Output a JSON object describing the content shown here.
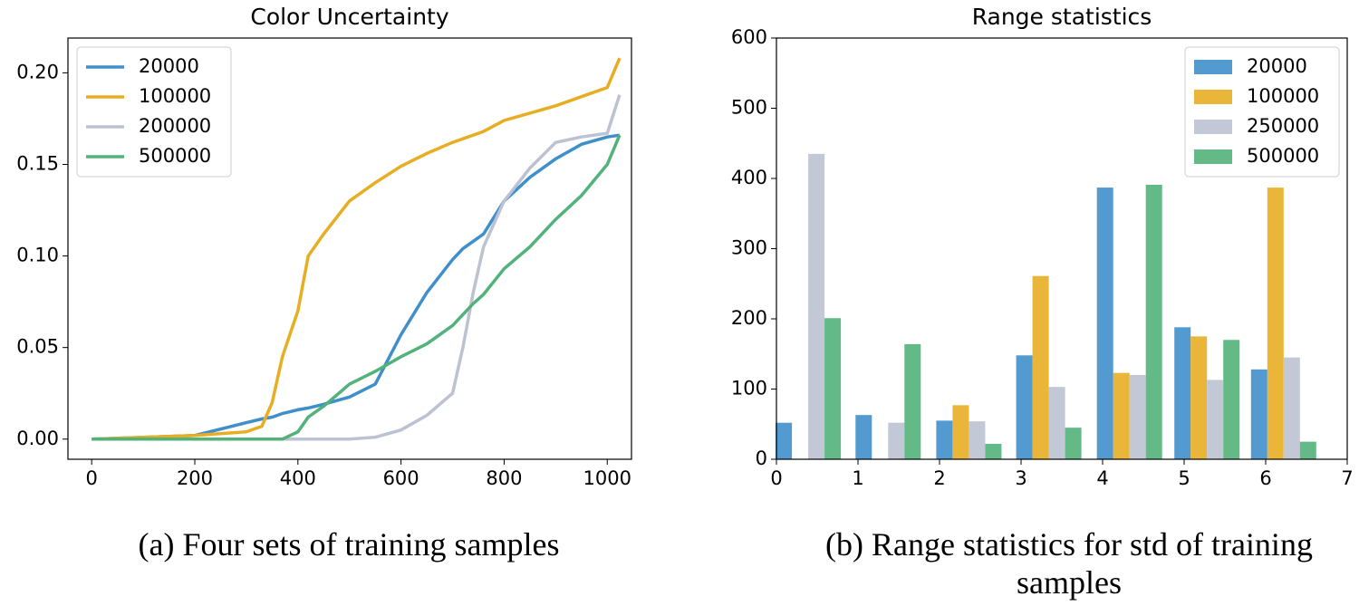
{
  "chart_data": [
    {
      "type": "line",
      "title": "Color Uncertainty",
      "caption": "(a) Four sets of training samples",
      "x": [
        0,
        200,
        300,
        330,
        350,
        370,
        400,
        420,
        450,
        500,
        550,
        600,
        650,
        700,
        720,
        740,
        760,
        800,
        850,
        900,
        950,
        1000,
        1024
      ],
      "series": [
        {
          "name": "20000",
          "color": "#3f8fcb",
          "values": [
            0,
            0.002,
            0.009,
            0.011,
            0.012,
            0.014,
            0.016,
            0.017,
            0.019,
            0.023,
            0.03,
            0.057,
            0.08,
            0.098,
            0.104,
            0.108,
            0.112,
            0.13,
            0.143,
            0.153,
            0.161,
            0.165,
            0.166
          ]
        },
        {
          "name": "100000",
          "color": "#e8ae23",
          "values": [
            0,
            0.002,
            0.004,
            0.007,
            0.02,
            0.045,
            0.07,
            0.1,
            0.112,
            0.13,
            0.14,
            0.149,
            0.156,
            0.162,
            0.164,
            0.166,
            0.168,
            0.174,
            0.178,
            0.182,
            0.187,
            0.192,
            0.208
          ]
        },
        {
          "name": "200000",
          "color": "#bcc2d2",
          "values": [
            0,
            0,
            0,
            0,
            0,
            0,
            0,
            0,
            0,
            0,
            0.001,
            0.005,
            0.013,
            0.025,
            0.05,
            0.08,
            0.105,
            0.13,
            0.148,
            0.162,
            0.165,
            0.167,
            0.188
          ]
        },
        {
          "name": "500000",
          "color": "#52b27a",
          "values": [
            0,
            0,
            0,
            0,
            0,
            0,
            0.004,
            0.012,
            0.018,
            0.03,
            0.037,
            0.045,
            0.052,
            0.062,
            0.068,
            0.074,
            0.079,
            0.093,
            0.105,
            0.12,
            0.133,
            0.15,
            0.166
          ]
        }
      ],
      "xlim": [
        -46,
        1047
      ],
      "xticks": [
        0,
        200,
        400,
        600,
        800,
        1000
      ],
      "ylim": [
        -0.011,
        0.219
      ],
      "yticks": [
        {
          "value": 0,
          "label": "0.00"
        },
        {
          "value": 0.05,
          "label": "0.05"
        },
        {
          "value": 0.1,
          "label": "0.10"
        },
        {
          "value": 0.15,
          "label": "0.15"
        },
        {
          "value": 0.2,
          "label": "0.20"
        }
      ],
      "legend": "upper left"
    },
    {
      "type": "bar",
      "title": "Range statistics",
      "caption": "(b) Range statistics for std of training samples",
      "x": [
        0.39,
        1.37,
        2.36,
        3.34,
        4.33,
        5.28,
        6.22
      ],
      "series": [
        {
          "name": "20000",
          "color": "#3f8fcb",
          "values": [
            52,
            63,
            55,
            148,
            387,
            188,
            128
          ]
        },
        {
          "name": "100000",
          "color": "#e8ae23",
          "values": [
            0,
            0,
            77,
            261,
            123,
            175,
            387
          ]
        },
        {
          "name": "250000",
          "color": "#bcc2d2",
          "values": [
            435,
            52,
            54,
            103,
            120,
            113,
            145
          ]
        },
        {
          "name": "500000",
          "color": "#52b27a",
          "values": [
            201,
            164,
            22,
            45,
            391,
            170,
            25
          ]
        }
      ],
      "xlim": [
        0,
        7
      ],
      "xticks": [
        0,
        1,
        2,
        3,
        4,
        5,
        6,
        7
      ],
      "ylim": [
        0,
        600
      ],
      "yticks": [
        0,
        100,
        200,
        300,
        400,
        500,
        600
      ],
      "legend": "upper right"
    }
  ]
}
